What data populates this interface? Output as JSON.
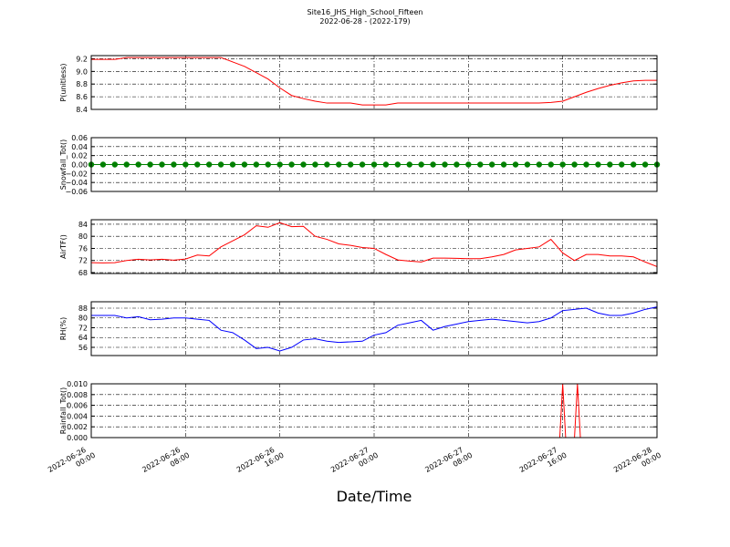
{
  "title": "Site16_JHS_High_School_Fifteen",
  "subtitle": "2022-06-28 - (2022-179)",
  "xlabel": "Date/Time",
  "xlim": [
    "2022-06-26 00:00",
    "2022-06-28 00:00"
  ],
  "xticks": [
    "2022-06-26 00:00",
    "2022-06-26 08:00",
    "2022-06-26 16:00",
    "2022-06-27 00:00",
    "2022-06-27 08:00",
    "2022-06-27 16:00",
    "2022-06-28 00:00"
  ],
  "chart_data": [
    {
      "type": "line",
      "ylabel": "P(unitless)",
      "ylim": [
        8.4,
        9.25
      ],
      "grid": true,
      "yticks": [
        8.4,
        8.6,
        8.8,
        {
          "value": 9,
          "label": "9.0"
        },
        9.2
      ],
      "x": [
        "2022-06-26 00:00",
        "2022-06-26 01:00",
        "2022-06-26 02:00",
        "2022-06-26 03:00",
        "2022-06-26 04:00",
        "2022-06-26 05:00",
        "2022-06-26 06:00",
        "2022-06-26 07:00",
        "2022-06-26 08:00",
        "2022-06-26 09:00",
        "2022-06-26 10:00",
        "2022-06-26 11:00",
        "2022-06-26 12:00",
        "2022-06-26 13:00",
        "2022-06-26 14:00",
        "2022-06-26 15:00",
        "2022-06-26 16:00",
        "2022-06-26 17:00",
        "2022-06-26 18:00",
        "2022-06-26 19:00",
        "2022-06-26 20:00",
        "2022-06-26 21:00",
        "2022-06-26 22:00",
        "2022-06-26 23:00",
        "2022-06-27 00:00",
        "2022-06-27 01:00",
        "2022-06-27 02:00",
        "2022-06-27 03:00",
        "2022-06-27 04:00",
        "2022-06-27 05:00",
        "2022-06-27 06:00",
        "2022-06-27 07:00",
        "2022-06-27 08:00",
        "2022-06-27 09:00",
        "2022-06-27 10:00",
        "2022-06-27 11:00",
        "2022-06-27 12:00",
        "2022-06-27 13:00",
        "2022-06-27 14:00",
        "2022-06-27 15:00",
        "2022-06-27 16:00",
        "2022-06-27 17:00",
        "2022-06-27 18:00",
        "2022-06-27 19:00",
        "2022-06-27 20:00",
        "2022-06-27 21:00",
        "2022-06-27 22:00",
        "2022-06-27 23:00",
        "2022-06-28 00:00"
      ],
      "series": [
        {
          "color": "#ff0000",
          "values": [
            9.19,
            9.19,
            9.19,
            9.22,
            9.22,
            9.22,
            9.22,
            9.22,
            9.22,
            9.22,
            9.22,
            9.22,
            9.15,
            9.08,
            8.98,
            8.88,
            8.74,
            8.62,
            8.57,
            8.53,
            8.5,
            8.5,
            8.5,
            8.47,
            8.47,
            8.47,
            8.5,
            8.5,
            8.5,
            8.5,
            8.5,
            8.5,
            8.5,
            8.5,
            8.5,
            8.5,
            8.5,
            8.5,
            8.5,
            8.51,
            8.53,
            8.6,
            8.67,
            8.73,
            8.78,
            8.82,
            8.85,
            8.86,
            8.86
          ]
        }
      ]
    },
    {
      "type": "line",
      "ylabel": "Snowfall_Tot()",
      "ylim": [
        -0.06,
        0.06
      ],
      "grid": true,
      "marker": true,
      "yticks": [
        {
          "value": -0.06,
          "label": "−0.06"
        },
        {
          "value": -0.04,
          "label": "−0.04"
        },
        {
          "value": -0.02,
          "label": "−0.02"
        },
        {
          "value": 0,
          "label": "0.00"
        },
        0.02,
        0.04,
        0.06
      ],
      "x": [
        "2022-06-26 00:00",
        "2022-06-26 01:00",
        "2022-06-26 02:00",
        "2022-06-26 03:00",
        "2022-06-26 04:00",
        "2022-06-26 05:00",
        "2022-06-26 06:00",
        "2022-06-26 07:00",
        "2022-06-26 08:00",
        "2022-06-26 09:00",
        "2022-06-26 10:00",
        "2022-06-26 11:00",
        "2022-06-26 12:00",
        "2022-06-26 13:00",
        "2022-06-26 14:00",
        "2022-06-26 15:00",
        "2022-06-26 16:00",
        "2022-06-26 17:00",
        "2022-06-26 18:00",
        "2022-06-26 19:00",
        "2022-06-26 20:00",
        "2022-06-26 21:00",
        "2022-06-26 22:00",
        "2022-06-26 23:00",
        "2022-06-27 00:00",
        "2022-06-27 01:00",
        "2022-06-27 02:00",
        "2022-06-27 03:00",
        "2022-06-27 04:00",
        "2022-06-27 05:00",
        "2022-06-27 06:00",
        "2022-06-27 07:00",
        "2022-06-27 08:00",
        "2022-06-27 09:00",
        "2022-06-27 10:00",
        "2022-06-27 11:00",
        "2022-06-27 12:00",
        "2022-06-27 13:00",
        "2022-06-27 14:00",
        "2022-06-27 15:00",
        "2022-06-27 16:00",
        "2022-06-27 17:00",
        "2022-06-27 18:00",
        "2022-06-27 19:00",
        "2022-06-27 20:00",
        "2022-06-27 21:00",
        "2022-06-27 22:00",
        "2022-06-27 23:00",
        "2022-06-28 00:00"
      ],
      "series": [
        {
          "color": "#008000",
          "values": [
            0,
            0,
            0,
            0,
            0,
            0,
            0,
            0,
            0,
            0,
            0,
            0,
            0,
            0,
            0,
            0,
            0,
            0,
            0,
            0,
            0,
            0,
            0,
            0,
            0,
            0,
            0,
            0,
            0,
            0,
            0,
            0,
            0,
            0,
            0,
            0,
            0,
            0,
            0,
            0,
            0,
            0,
            0,
            0,
            0,
            0,
            0,
            0,
            0
          ]
        }
      ]
    },
    {
      "type": "line",
      "ylabel": "AirTF()",
      "ylim": [
        67.7,
        85.5
      ],
      "grid": true,
      "yticks": [
        68,
        72,
        76,
        80,
        84
      ],
      "x": [
        "2022-06-26 00:00",
        "2022-06-26 01:00",
        "2022-06-26 02:00",
        "2022-06-26 03:00",
        "2022-06-26 04:00",
        "2022-06-26 05:00",
        "2022-06-26 06:00",
        "2022-06-26 07:00",
        "2022-06-26 08:00",
        "2022-06-26 09:00",
        "2022-06-26 10:00",
        "2022-06-26 11:00",
        "2022-06-26 12:00",
        "2022-06-26 13:00",
        "2022-06-26 14:00",
        "2022-06-26 15:00",
        "2022-06-26 16:00",
        "2022-06-26 17:00",
        "2022-06-26 18:00",
        "2022-06-26 19:00",
        "2022-06-26 20:00",
        "2022-06-26 21:00",
        "2022-06-26 22:00",
        "2022-06-26 23:00",
        "2022-06-27 00:00",
        "2022-06-27 01:00",
        "2022-06-27 02:00",
        "2022-06-27 03:00",
        "2022-06-27 04:00",
        "2022-06-27 05:00",
        "2022-06-27 06:00",
        "2022-06-27 07:00",
        "2022-06-27 08:00",
        "2022-06-27 09:00",
        "2022-06-27 10:00",
        "2022-06-27 11:00",
        "2022-06-27 12:00",
        "2022-06-27 13:00",
        "2022-06-27 14:00",
        "2022-06-27 15:00",
        "2022-06-27 16:00",
        "2022-06-27 17:00",
        "2022-06-27 18:00",
        "2022-06-27 19:00",
        "2022-06-27 20:00",
        "2022-06-27 21:00",
        "2022-06-27 22:00",
        "2022-06-27 23:00",
        "2022-06-28 00:00"
      ],
      "series": [
        {
          "color": "#ff0000",
          "values": [
            71.3,
            71.2,
            71.3,
            72,
            72.4,
            72.2,
            72.4,
            72.1,
            72.5,
            73.8,
            73.5,
            76.5,
            78.5,
            80.5,
            83.5,
            83,
            84.5,
            83.2,
            83.3,
            80,
            79,
            77.5,
            77,
            76.3,
            76,
            74,
            72.2,
            71.8,
            71.5,
            72.8,
            72.8,
            72.7,
            72.6,
            72.6,
            73.2,
            74,
            75.5,
            76,
            76.5,
            79,
            74.5,
            72,
            74,
            74,
            73.5,
            73.5,
            73.2,
            71.5,
            70
          ]
        }
      ]
    },
    {
      "type": "line",
      "ylabel": "RH(%)",
      "ylim": [
        49.3,
        93.2
      ],
      "grid": true,
      "yticks": [
        56,
        64,
        72,
        80,
        88
      ],
      "x": [
        "2022-06-26 00:00",
        "2022-06-26 01:00",
        "2022-06-26 02:00",
        "2022-06-26 03:00",
        "2022-06-26 04:00",
        "2022-06-26 05:00",
        "2022-06-26 06:00",
        "2022-06-26 07:00",
        "2022-06-26 08:00",
        "2022-06-26 09:00",
        "2022-06-26 10:00",
        "2022-06-26 11:00",
        "2022-06-26 12:00",
        "2022-06-26 13:00",
        "2022-06-26 14:00",
        "2022-06-26 15:00",
        "2022-06-26 16:00",
        "2022-06-26 17:00",
        "2022-06-26 18:00",
        "2022-06-26 19:00",
        "2022-06-26 20:00",
        "2022-06-26 21:00",
        "2022-06-26 22:00",
        "2022-06-26 23:00",
        "2022-06-27 00:00",
        "2022-06-27 01:00",
        "2022-06-27 02:00",
        "2022-06-27 03:00",
        "2022-06-27 04:00",
        "2022-06-27 05:00",
        "2022-06-27 06:00",
        "2022-06-27 07:00",
        "2022-06-27 08:00",
        "2022-06-27 09:00",
        "2022-06-27 10:00",
        "2022-06-27 11:00",
        "2022-06-27 12:00",
        "2022-06-27 13:00",
        "2022-06-27 14:00",
        "2022-06-27 15:00",
        "2022-06-27 16:00",
        "2022-06-27 17:00",
        "2022-06-27 18:00",
        "2022-06-27 19:00",
        "2022-06-27 20:00",
        "2022-06-27 21:00",
        "2022-06-27 22:00",
        "2022-06-27 23:00",
        "2022-06-28 00:00"
      ],
      "series": [
        {
          "color": "#0000ff",
          "values": [
            82,
            82,
            82,
            80,
            81,
            78.5,
            79,
            80,
            80,
            79,
            78,
            70,
            68,
            62,
            55,
            56,
            53,
            56,
            62,
            63,
            61,
            60,
            60.5,
            61,
            66,
            68,
            74,
            76,
            78,
            70,
            73,
            75,
            77,
            78,
            79,
            78,
            77,
            76,
            77,
            80,
            86,
            87,
            88,
            84,
            82,
            82,
            84,
            87,
            89
          ]
        }
      ]
    },
    {
      "type": "line",
      "ylabel": "Rainfall_Tot()",
      "ylim": [
        0,
        0.01
      ],
      "grid": true,
      "yticks": [
        {
          "value": 0,
          "label": "0.000"
        },
        0.002,
        0.004,
        0.006,
        0.008,
        {
          "value": 0.01,
          "label": "0.010"
        }
      ],
      "x": [
        "2022-06-26 00:00",
        "2022-06-27 15:45",
        "2022-06-27 16:00",
        "2022-06-27 16:15",
        "2022-06-27 17:00",
        "2022-06-27 17:15",
        "2022-06-27 17:30",
        "2022-06-28 00:00"
      ],
      "series": [
        {
          "color": "#ff0000",
          "values": [
            0,
            0,
            0.01,
            0,
            0,
            0.01,
            0,
            0
          ]
        }
      ]
    }
  ]
}
